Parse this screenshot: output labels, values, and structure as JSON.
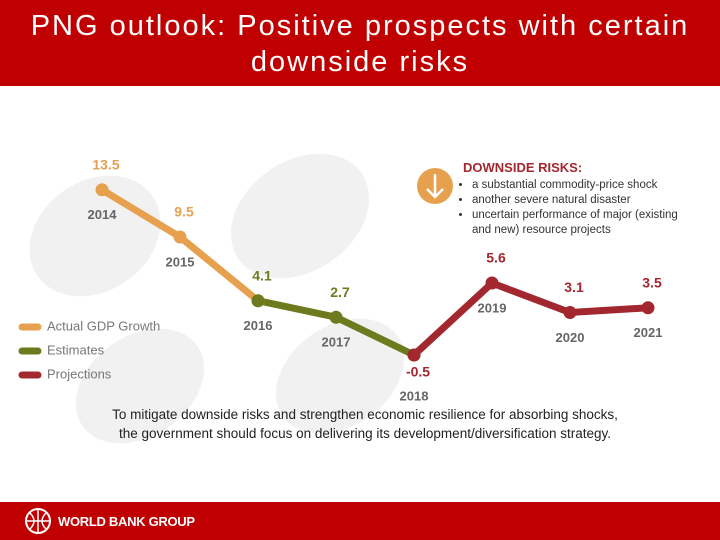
{
  "header": {
    "title": "PNG outlook: Positive prospects with certain downside risks"
  },
  "chart_data": {
    "type": "line",
    "categories": [
      "2014",
      "2015",
      "2016",
      "2017",
      "2018",
      "2019",
      "2020",
      "2021"
    ],
    "series": [
      {
        "name": "Actual GDP Growth",
        "color": "#e7a04e",
        "values": [
          13.5,
          9.5,
          4.1,
          null,
          null,
          null,
          null,
          null
        ]
      },
      {
        "name": "Estimates",
        "color": "#6e7a1e",
        "values": [
          null,
          null,
          4.1,
          2.7,
          -0.5,
          null,
          null,
          null
        ]
      },
      {
        "name": "Projections",
        "color": "#a3272f",
        "values": [
          null,
          null,
          null,
          null,
          -0.5,
          5.6,
          3.1,
          3.5
        ]
      }
    ]
  },
  "risks": {
    "title": "DOWNSIDE RISKS:",
    "items": [
      "a substantial commodity-price shock",
      "another severe natural disaster",
      "uncertain performance of major (existing and new) resource projects"
    ]
  },
  "note": {
    "lines": [
      "To mitigate downside risks and strengthen economic resilience for absorbing shocks,",
      "the government should focus on delivering its development/diversification strategy."
    ]
  },
  "footer": {
    "logo": "WORLD BANK GROUP"
  }
}
